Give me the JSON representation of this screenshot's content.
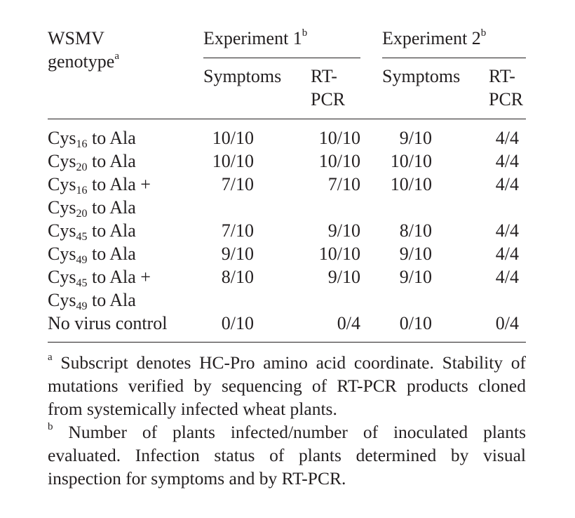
{
  "header": {
    "genotype": {
      "lines": [
        "WSMV",
        "genotype"
      ],
      "note": "a"
    },
    "experiments": [
      {
        "title": "Experiment 1",
        "note": "b"
      },
      {
        "title": "Experiment 2",
        "note": "b"
      }
    ],
    "columns": [
      {
        "lines": [
          "Symptoms"
        ]
      },
      {
        "lines": [
          "RT-",
          "PCR"
        ]
      },
      {
        "lines": [
          "Symptoms"
        ]
      },
      {
        "lines": [
          "RT-",
          "PCR"
        ]
      }
    ]
  },
  "table": {
    "rows": [
      {
        "genotype": [
          [
            "Cys",
            "16",
            "to Ala"
          ]
        ],
        "values": [
          "10/10",
          "10/10",
          "9/10",
          "4/4"
        ]
      },
      {
        "genotype": [
          [
            "Cys",
            "20",
            "to Ala"
          ]
        ],
        "values": [
          "10/10",
          "10/10",
          "10/10",
          "4/4"
        ]
      },
      {
        "genotype": [
          [
            "Cys",
            "16",
            "to Ala +"
          ],
          [
            "Cys",
            "20",
            "to Ala"
          ]
        ],
        "values": [
          "7/10",
          "7/10",
          "10/10",
          "4/4"
        ]
      },
      {
        "genotype": [
          [
            "Cys",
            "45",
            "to Ala"
          ]
        ],
        "values": [
          "7/10",
          "9/10",
          "8/10",
          "4/4"
        ]
      },
      {
        "genotype": [
          [
            "Cys",
            "49",
            "to Ala"
          ]
        ],
        "values": [
          "9/10",
          "10/10",
          "9/10",
          "4/4"
        ]
      },
      {
        "genotype": [
          [
            "Cys",
            "45",
            "to Ala +"
          ],
          [
            "Cys",
            "49",
            "to Ala"
          ]
        ],
        "values": [
          "8/10",
          "9/10",
          "9/10",
          "4/4"
        ]
      },
      {
        "genotype": [
          [
            "No virus control"
          ]
        ],
        "values": [
          "0/10",
          "0/4",
          "0/10",
          "0/4"
        ]
      }
    ]
  },
  "footnotes": [
    {
      "marker": "a",
      "text": "Subscript denotes HC-Pro amino acid coordinate. Stability of mutations verified by sequencing of RT-PCR products cloned from systemically infected wheat plants."
    },
    {
      "marker": "b",
      "text": "Number of plants infected/number of inoculated plants evaluated. Infection status of plants determined by visual inspection for symptoms and by RT-PCR."
    }
  ]
}
